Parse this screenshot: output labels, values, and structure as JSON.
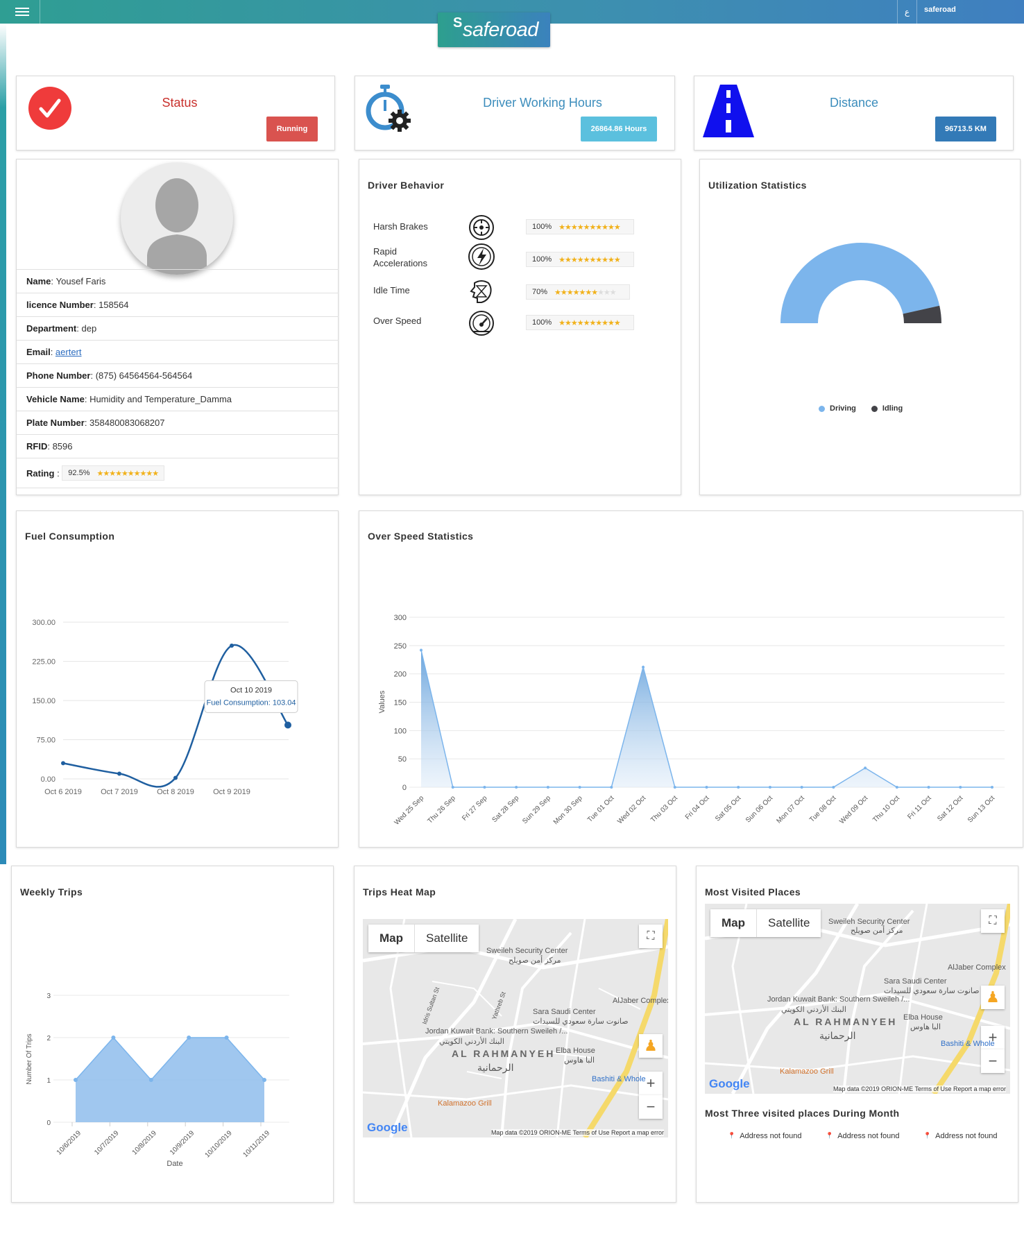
{
  "header": {
    "app_name": "saferoad",
    "lang_label": "ع",
    "user_name": "saferoad"
  },
  "kpis": {
    "status": {
      "label": "Status",
      "value": "Running"
    },
    "working_hours": {
      "label": "Driver Working Hours",
      "value": "26864.86 Hours"
    },
    "distance": {
      "label": "Distance",
      "value": "96713.5 KM"
    }
  },
  "driver": {
    "fields": [
      {
        "label": "Name",
        "value": "Yousef Faris"
      },
      {
        "label": "licence Number",
        "value": "158564"
      },
      {
        "label": "Department",
        "value": "dep"
      },
      {
        "label": "Email",
        "value": "aertert"
      },
      {
        "label": "Phone Number",
        "value": "(875) 64564564-564564"
      },
      {
        "label": "Vehicle Name",
        "value": "Humidity and Temperature_Damma"
      },
      {
        "label": "Plate Number",
        "value": "358480083068207"
      },
      {
        "label": "RFID",
        "value": "8596"
      }
    ],
    "rating_label": "Rating",
    "rating_value": "92.5%",
    "rating_fraction": 0.925
  },
  "behavior": {
    "title": "Driver Behavior",
    "items": [
      {
        "label": "Harsh Brakes",
        "icon": "brake-icon",
        "value": "100%",
        "fraction": 1.0
      },
      {
        "label": "Rapid Accelerations",
        "icon": "acceleration-icon",
        "value": "100%",
        "fraction": 1.0
      },
      {
        "label": "Idle Time",
        "icon": "idle-icon",
        "value": "70%",
        "fraction": 0.7
      },
      {
        "label": "Over Speed",
        "icon": "speedometer-icon",
        "value": "100%",
        "fraction": 1.0
      }
    ]
  },
  "utilization": {
    "title": "Utilization Statistics",
    "legend": [
      "Driving",
      "Idling"
    ],
    "colors": [
      "#7cb5ec",
      "#434348"
    ]
  },
  "fuel": {
    "title": "Fuel Consumption",
    "tooltip_date": "Oct 10 2019",
    "tooltip_label": "Fuel Consumption:",
    "tooltip_value": "103.04"
  },
  "overspeed": {
    "title": "Over Speed Statistics"
  },
  "weekly": {
    "title": "Weekly Trips"
  },
  "heatmap": {
    "title": "Trips Heat Map"
  },
  "visited": {
    "title": "Most Visited Places",
    "subtitle": "Most Three visited places During Month",
    "places": [
      "Address not found",
      "Address not found",
      "Address not found"
    ]
  },
  "map": {
    "map_btn": "Map",
    "satellite_btn": "Satellite",
    "labels": {
      "sweileh": "Sweileh Security Center",
      "sweileh_ar": "مركز أمن صويلح",
      "sara": "Sara Saudi Center",
      "sara_ar": "صانوت سارة سعودي للسيدات",
      "jordan": "Jordan Kuwait Bank: Southern Sweileh /...",
      "jordan_ar": "البنك الأردني الكويتي",
      "rahmanyeh": "AL RAHMANYEH",
      "rahmanyeh_ar": "الرحمانية",
      "elba": "Elba House",
      "elba_ar": "البا هاوس",
      "aljaber": "AlJaber Complex",
      "bashiti": "Bashiti & Whole",
      "kalamazoo": "Kalamazoo Grill",
      "idris": "Idris Sultan St",
      "yathreb": "Yathreb St",
      "google": "Google"
    },
    "footer": "Map data ©2019 ORION-ME   Terms of Use   Report a map error"
  },
  "chart_data": [
    {
      "type": "pie",
      "title": "Utilization Statistics",
      "labels": [
        "Driving",
        "Idling"
      ],
      "values": [
        93,
        7
      ]
    },
    {
      "type": "line",
      "title": "Fuel Consumption",
      "categories": [
        "Oct 6 2019",
        "Oct 7 2019",
        "Oct 8 2019",
        "Oct 9 2019",
        "Oct 10 2019"
      ],
      "series": [
        {
          "name": "Fuel Consumption",
          "values": [
            30,
            10,
            2,
            255,
            103.04
          ]
        }
      ],
      "y_ticks": [
        "0.00",
        "75.00",
        "150.00",
        "225.00",
        "300.00"
      ],
      "ylim": [
        0,
        300
      ]
    },
    {
      "type": "area",
      "title": "Over Speed Statistics",
      "ylabel": "Values",
      "categories": [
        "Wed 25 Sep",
        "Thu 26 Sep",
        "Fri 27 Sep",
        "Sat 28 Sep",
        "Sun 29 Sep",
        "Mon 30 Sep",
        "Tue 01 Oct",
        "Wed 02 Oct",
        "Thu 03 Oct",
        "Fri 04 Oct",
        "Sat 05 Oct",
        "Sun 06 Oct",
        "Mon 07 Oct",
        "Tue 08 Oct",
        "Wed 09 Oct",
        "Thu 10 Oct",
        "Fri 11 Oct",
        "Sat 12 Oct",
        "Sun 13 Oct"
      ],
      "values": [
        242,
        0,
        0,
        0,
        0,
        0,
        0,
        212,
        0,
        0,
        0,
        0,
        0,
        0,
        34,
        0,
        0,
        0,
        0
      ],
      "y_ticks": [
        0,
        50,
        100,
        150,
        200,
        250,
        300
      ],
      "ylim": [
        0,
        300
      ]
    },
    {
      "type": "area",
      "title": "Weekly Trips",
      "xlabel": "Date",
      "ylabel": "Number Of Trips",
      "categories": [
        "10/6/2019",
        "10/7/2019",
        "10/8/2019",
        "10/9/2019",
        "10/10/2019",
        "10/11/2019"
      ],
      "values": [
        1,
        2,
        1,
        2,
        2,
        1
      ],
      "y_ticks": [
        0,
        1,
        2,
        3
      ],
      "ylim": [
        0,
        3
      ]
    }
  ]
}
